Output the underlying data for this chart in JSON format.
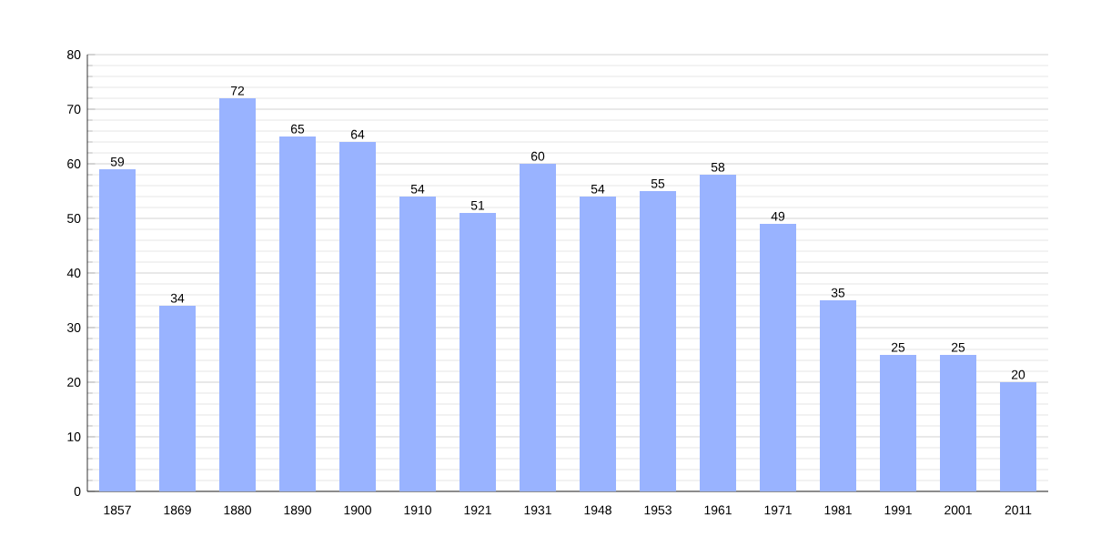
{
  "chart_data": {
    "type": "bar",
    "categories": [
      "1857",
      "1869",
      "1880",
      "1890",
      "1900",
      "1910",
      "1921",
      "1931",
      "1948",
      "1953",
      "1961",
      "1971",
      "1981",
      "1991",
      "2001",
      "2011"
    ],
    "values": [
      59,
      34,
      72,
      65,
      64,
      54,
      51,
      60,
      54,
      55,
      58,
      49,
      35,
      25,
      25,
      20
    ],
    "color": "#99b3ff",
    "ylim": [
      0,
      80
    ],
    "yticks": [
      0,
      10,
      20,
      30,
      40,
      50,
      60,
      70,
      80
    ],
    "grid": "y",
    "data_labels": true
  }
}
